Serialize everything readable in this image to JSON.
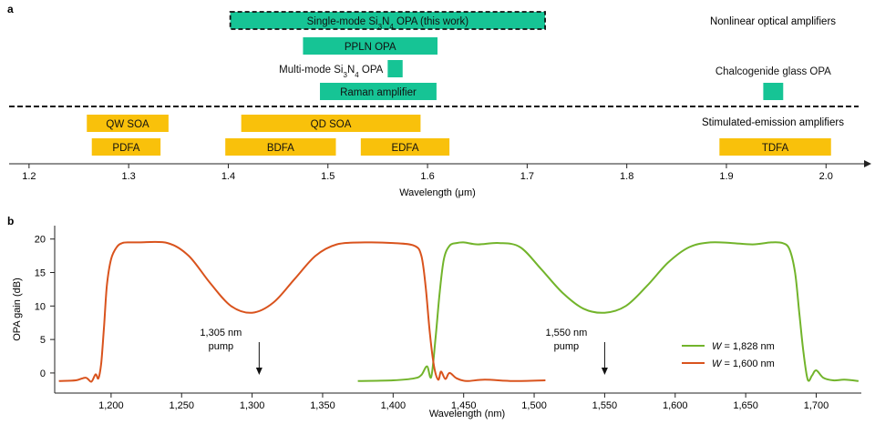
{
  "panel_a_label": "a",
  "panel_b_label": "b",
  "colors": {
    "nonlinear": "#16c495",
    "stimulated": "#f9c10b",
    "series_w1828": "#72b42b",
    "series_w1600": "#d9531d",
    "axis": "#222222"
  },
  "chart_data": [
    {
      "type": "bar",
      "orientation": "horizontal-ranges",
      "panel": "a",
      "xlabel": "Wavelength (μm)",
      "xlim": [
        1.18,
        2.04
      ],
      "xticks": [
        1.2,
        1.3,
        1.4,
        1.5,
        1.6,
        1.7,
        1.8,
        1.9,
        2.0
      ],
      "xtick_labels": [
        "1.2",
        "1.3",
        "1.4",
        "1.5",
        "1.6",
        "1.7",
        "1.8",
        "1.9",
        "2.0"
      ],
      "group_labels": {
        "nonlinear": "Nonlinear optical amplifiers",
        "stimulated": "Stimulated-emission amplifiers"
      },
      "bars": [
        {
          "name": "Single-mode Si3N4 OPA (this work)",
          "label_parts": [
            "Single-mode Si",
            "3",
            "N",
            "4",
            " OPA (this work)"
          ],
          "start": 1.402,
          "end": 1.718,
          "group": "nonlinear",
          "dashed_outline": true,
          "label_pos": "inside"
        },
        {
          "name": "PPLN OPA",
          "label_parts": [
            "PPLN OPA"
          ],
          "start": 1.475,
          "end": 1.61,
          "group": "nonlinear",
          "label_pos": "inside"
        },
        {
          "name": "Multi-mode Si3N4 OPA",
          "label_parts": [
            "Multi-mode Si",
            "3",
            "N",
            "4",
            " OPA"
          ],
          "start": 1.56,
          "end": 1.575,
          "group": "nonlinear",
          "label_pos": "left"
        },
        {
          "name": "Raman amplifier",
          "label_parts": [
            "Raman amplifier"
          ],
          "start": 1.492,
          "end": 1.609,
          "group": "nonlinear",
          "label_pos": "inside"
        },
        {
          "name": "Chalcogenide glass OPA",
          "label_parts": [
            "Chalcogenide glass OPA"
          ],
          "start": 1.937,
          "end": 1.957,
          "group": "nonlinear",
          "label_pos": "above"
        },
        {
          "name": "QW SOA",
          "label_parts": [
            "QW SOA"
          ],
          "start": 1.258,
          "end": 1.34,
          "group": "stimulated",
          "label_pos": "inside"
        },
        {
          "name": "QD SOA",
          "label_parts": [
            "QD SOA"
          ],
          "start": 1.413,
          "end": 1.593,
          "group": "stimulated",
          "label_pos": "inside"
        },
        {
          "name": "PDFA",
          "label_parts": [
            "PDFA"
          ],
          "start": 1.263,
          "end": 1.332,
          "group": "stimulated",
          "label_pos": "inside"
        },
        {
          "name": "BDFA",
          "label_parts": [
            "BDFA"
          ],
          "start": 1.397,
          "end": 1.508,
          "group": "stimulated",
          "label_pos": "inside"
        },
        {
          "name": "EDFA",
          "label_parts": [
            "EDFA"
          ],
          "start": 1.533,
          "end": 1.622,
          "group": "stimulated",
          "label_pos": "inside"
        },
        {
          "name": "TDFA",
          "label_parts": [
            "TDFA"
          ],
          "start": 1.893,
          "end": 2.005,
          "group": "stimulated",
          "label_pos": "inside"
        }
      ]
    },
    {
      "type": "line",
      "panel": "b",
      "xlabel": "Wavelength (nm)",
      "ylabel": "OPA gain (dB)",
      "xlim": [
        1160,
        1732
      ],
      "ylim": [
        -3,
        22
      ],
      "xticks": [
        1200,
        1250,
        1300,
        1350,
        1400,
        1450,
        1500,
        1550,
        1600,
        1650,
        1700
      ],
      "xtick_labels": [
        "1,200",
        "1,250",
        "1,300",
        "1,350",
        "1,400",
        "1,450",
        "1,500",
        "1,550",
        "1,600",
        "1,650",
        "1,700"
      ],
      "yticks": [
        0,
        5,
        10,
        15,
        20
      ],
      "ytick_labels": [
        "0",
        "5",
        "10",
        "15",
        "20"
      ],
      "legend_position": "bottom-right",
      "series": [
        {
          "name": "W = 1,828 nm",
          "legend_var": "W",
          "legend_value": " = 1,828 nm",
          "color": "#72b42b",
          "x": [
            1375,
            1400,
            1415,
            1420,
            1424,
            1427,
            1430,
            1433,
            1436,
            1440,
            1445,
            1450,
            1460,
            1475,
            1490,
            1505,
            1520,
            1535,
            1550,
            1565,
            1580,
            1595,
            1610,
            1625,
            1640,
            1655,
            1668,
            1676,
            1681,
            1685,
            1688,
            1691,
            1694,
            1697,
            1700,
            1705,
            1712,
            1720,
            1730
          ],
          "y": [
            -1.2,
            -1.1,
            -0.8,
            -0.3,
            1.0,
            -0.6,
            5.0,
            12.0,
            17.0,
            19.0,
            19.4,
            19.5,
            19.2,
            19.4,
            18.8,
            15.5,
            12.0,
            9.6,
            9.0,
            10.0,
            13.0,
            16.5,
            18.8,
            19.5,
            19.4,
            19.2,
            19.5,
            19.4,
            18.5,
            15.0,
            9.0,
            3.0,
            -1.0,
            -0.4,
            0.4,
            -0.7,
            -1.1,
            -1.0,
            -1.2
          ]
        },
        {
          "name": "W = 1,600 nm",
          "legend_var": "W",
          "legend_value": " = 1,600 nm",
          "color": "#d9531d",
          "x": [
            1163,
            1175,
            1182,
            1186,
            1189,
            1191,
            1193,
            1195,
            1197,
            1200,
            1204,
            1208,
            1213,
            1220,
            1240,
            1255,
            1270,
            1285,
            1300,
            1315,
            1330,
            1345,
            1360,
            1380,
            1400,
            1415,
            1420,
            1423,
            1426,
            1429,
            1432,
            1434,
            1437,
            1440,
            1445,
            1452,
            1465,
            1485,
            1508
          ],
          "y": [
            -1.2,
            -1.1,
            -0.7,
            -1.3,
            -0.2,
            -0.8,
            1.5,
            7.0,
            13.0,
            17.0,
            18.8,
            19.4,
            19.5,
            19.5,
            19.4,
            17.5,
            13.5,
            10.0,
            9.0,
            10.5,
            14.0,
            17.5,
            19.2,
            19.5,
            19.4,
            19.0,
            17.5,
            13.0,
            6.0,
            1.0,
            -1.0,
            0.2,
            -0.9,
            0.0,
            -0.8,
            -1.2,
            -1.0,
            -1.2,
            -1.1
          ]
        }
      ],
      "annotations": [
        {
          "line1": "1,305 nm",
          "line2": "pump",
          "x": 1305
        },
        {
          "line1": "1,550 nm",
          "line2": "pump",
          "x": 1550
        }
      ]
    }
  ]
}
